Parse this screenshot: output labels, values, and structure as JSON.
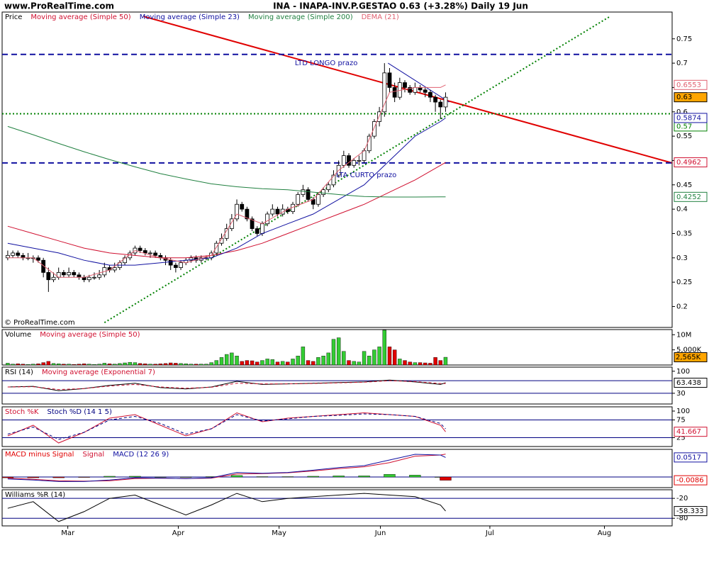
{
  "chart_data": [
    {
      "type": "candlestick",
      "site": "www.ProRealTime.com",
      "title": "INA - INAPA-INV.P.GESTAO    0.63 (+3.28%)    Daily  19 Jun",
      "copyright": "© ProRealTime.com",
      "legend_label": "Price",
      "up_color": "#ffffff",
      "down_color": "#000000",
      "close_badge_color": "#ffa500",
      "xlim": [
        -1.1,
        130.5
      ],
      "xticks": [
        {
          "value": 11.8,
          "label": "Mar"
        },
        {
          "value": 33.5,
          "label": "Apr"
        },
        {
          "value": 53.3,
          "label": "May"
        },
        {
          "value": 73.2,
          "label": "Jun"
        },
        {
          "value": 94.7,
          "label": "Jul"
        },
        {
          "value": 117.2,
          "label": "Aug"
        }
      ],
      "ylim": [
        0.157,
        0.805
      ],
      "yticks": [
        0.75,
        0.7,
        0.65,
        0.6,
        0.55,
        0.5,
        0.45,
        0.4,
        0.35,
        0.3,
        0.25,
        0.2
      ],
      "candles": [
        [
          0.3,
          0.315,
          0.295,
          0.305
        ],
        [
          0.305,
          0.315,
          0.3,
          0.31
        ],
        [
          0.31,
          0.315,
          0.3,
          0.305
        ],
        [
          0.305,
          0.31,
          0.295,
          0.3
        ],
        [
          0.3,
          0.31,
          0.295,
          0.3
        ],
        [
          0.3,
          0.305,
          0.29,
          0.3
        ],
        [
          0.3,
          0.305,
          0.29,
          0.295
        ],
        [
          0.295,
          0.3,
          0.26,
          0.27
        ],
        [
          0.27,
          0.28,
          0.23,
          0.255
        ],
        [
          0.255,
          0.27,
          0.25,
          0.26
        ],
        [
          0.26,
          0.28,
          0.255,
          0.27
        ],
        [
          0.27,
          0.275,
          0.26,
          0.265
        ],
        [
          0.265,
          0.28,
          0.26,
          0.27
        ],
        [
          0.27,
          0.275,
          0.26,
          0.265
        ],
        [
          0.265,
          0.27,
          0.255,
          0.26
        ],
        [
          0.26,
          0.265,
          0.25,
          0.255
        ],
        [
          0.255,
          0.265,
          0.25,
          0.26
        ],
        [
          0.26,
          0.27,
          0.255,
          0.26
        ],
        [
          0.26,
          0.275,
          0.255,
          0.265
        ],
        [
          0.265,
          0.29,
          0.26,
          0.28
        ],
        [
          0.28,
          0.285,
          0.27,
          0.275
        ],
        [
          0.275,
          0.29,
          0.27,
          0.28
        ],
        [
          0.28,
          0.295,
          0.275,
          0.29
        ],
        [
          0.29,
          0.305,
          0.285,
          0.3
        ],
        [
          0.3,
          0.315,
          0.295,
          0.31
        ],
        [
          0.31,
          0.325,
          0.305,
          0.32
        ],
        [
          0.32,
          0.325,
          0.31,
          0.315
        ],
        [
          0.315,
          0.32,
          0.305,
          0.31
        ],
        [
          0.31,
          0.315,
          0.3,
          0.31
        ],
        [
          0.31,
          0.315,
          0.3,
          0.305
        ],
        [
          0.305,
          0.31,
          0.295,
          0.3
        ],
        [
          0.3,
          0.305,
          0.285,
          0.295
        ],
        [
          0.295,
          0.3,
          0.275,
          0.285
        ],
        [
          0.285,
          0.29,
          0.27,
          0.28
        ],
        [
          0.28,
          0.295,
          0.275,
          0.29
        ],
        [
          0.29,
          0.3,
          0.285,
          0.295
        ],
        [
          0.295,
          0.305,
          0.29,
          0.3
        ],
        [
          0.3,
          0.305,
          0.29,
          0.295
        ],
        [
          0.295,
          0.305,
          0.29,
          0.3
        ],
        [
          0.3,
          0.305,
          0.295,
          0.3
        ],
        [
          0.3,
          0.315,
          0.295,
          0.31
        ],
        [
          0.31,
          0.335,
          0.305,
          0.33
        ],
        [
          0.33,
          0.35,
          0.325,
          0.34
        ],
        [
          0.34,
          0.37,
          0.335,
          0.36
        ],
        [
          0.36,
          0.39,
          0.355,
          0.38
        ],
        [
          0.38,
          0.42,
          0.375,
          0.41
        ],
        [
          0.41,
          0.415,
          0.395,
          0.4
        ],
        [
          0.4,
          0.405,
          0.375,
          0.38
        ],
        [
          0.38,
          0.385,
          0.355,
          0.36
        ],
        [
          0.36,
          0.365,
          0.345,
          0.35
        ],
        [
          0.35,
          0.375,
          0.345,
          0.37
        ],
        [
          0.37,
          0.395,
          0.365,
          0.39
        ],
        [
          0.39,
          0.41,
          0.385,
          0.4
        ],
        [
          0.4,
          0.405,
          0.385,
          0.39
        ],
        [
          0.39,
          0.41,
          0.385,
          0.4
        ],
        [
          0.4,
          0.405,
          0.39,
          0.395
        ],
        [
          0.395,
          0.415,
          0.39,
          0.41
        ],
        [
          0.41,
          0.435,
          0.405,
          0.43
        ],
        [
          0.43,
          0.45,
          0.425,
          0.44
        ],
        [
          0.44,
          0.445,
          0.415,
          0.42
        ],
        [
          0.42,
          0.425,
          0.4,
          0.41
        ],
        [
          0.41,
          0.435,
          0.405,
          0.43
        ],
        [
          0.43,
          0.445,
          0.425,
          0.44
        ],
        [
          0.44,
          0.455,
          0.435,
          0.45
        ],
        [
          0.45,
          0.48,
          0.445,
          0.47
        ],
        [
          0.47,
          0.5,
          0.465,
          0.49
        ],
        [
          0.49,
          0.52,
          0.485,
          0.51
        ],
        [
          0.51,
          0.515,
          0.485,
          0.49
        ],
        [
          0.49,
          0.505,
          0.485,
          0.5
        ],
        [
          0.5,
          0.51,
          0.49,
          0.5
        ],
        [
          0.5,
          0.525,
          0.495,
          0.52
        ],
        [
          0.52,
          0.555,
          0.515,
          0.55
        ],
        [
          0.55,
          0.585,
          0.545,
          0.58
        ],
        [
          0.58,
          0.61,
          0.57,
          0.6
        ],
        [
          0.6,
          0.7,
          0.59,
          0.68
        ],
        [
          0.68,
          0.69,
          0.64,
          0.65
        ],
        [
          0.65,
          0.66,
          0.62,
          0.63
        ],
        [
          0.63,
          0.67,
          0.625,
          0.66
        ],
        [
          0.66,
          0.665,
          0.64,
          0.65
        ],
        [
          0.65,
          0.655,
          0.635,
          0.64
        ],
        [
          0.64,
          0.66,
          0.635,
          0.65
        ],
        [
          0.65,
          0.655,
          0.64,
          0.645
        ],
        [
          0.645,
          0.65,
          0.63,
          0.64
        ],
        [
          0.64,
          0.645,
          0.62,
          0.63
        ],
        [
          0.63,
          0.635,
          0.6,
          0.62
        ],
        [
          0.62,
          0.625,
          0.585,
          0.61
        ],
        [
          0.61,
          0.64,
          0.6,
          0.63
        ]
      ],
      "x": [
        0,
        5,
        10,
        15,
        20,
        25,
        30,
        35,
        40,
        45,
        50,
        55,
        60,
        65,
        70,
        75,
        80,
        85,
        86
      ],
      "series": [
        {
          "name": "Moving average (Simple 50)",
          "color": "#d01030",
          "badge": true,
          "values": [
            0.365,
            0.35,
            0.335,
            0.32,
            0.31,
            0.305,
            0.3,
            0.3,
            0.305,
            0.315,
            0.33,
            0.35,
            0.37,
            0.39,
            0.41,
            0.435,
            0.46,
            0.49,
            0.4962
          ]
        },
        {
          "name": "Moving average (Simple 23)",
          "color": "#1010a0",
          "badge": true,
          "values": [
            0.33,
            0.32,
            0.31,
            0.295,
            0.285,
            0.285,
            0.29,
            0.295,
            0.3,
            0.32,
            0.35,
            0.37,
            0.39,
            0.42,
            0.45,
            0.5,
            0.55,
            0.58,
            0.5874
          ]
        },
        {
          "name": "Moving average (Simple 200)",
          "color": "#208040",
          "badge": true,
          "values": [
            0.57,
            0.553,
            0.535,
            0.518,
            0.502,
            0.487,
            0.473,
            0.462,
            0.452,
            0.446,
            0.442,
            0.44,
            0.435,
            0.43,
            0.426,
            0.425,
            0.425,
            0.4252,
            0.4252
          ]
        },
        {
          "name": "DEMA (21)",
          "color": "#e06070",
          "badge": true,
          "values": [
            0.3,
            0.3,
            0.26,
            0.26,
            0.275,
            0.315,
            0.3,
            0.29,
            0.305,
            0.39,
            0.37,
            0.4,
            0.42,
            0.48,
            0.52,
            0.64,
            0.65,
            0.65,
            0.6553
          ]
        }
      ],
      "levels": [
        {
          "value": 0.57,
          "color": "#008000"
        }
      ],
      "lines": [
        {
          "x": [
            26.7,
            130.5
          ],
          "y": [
            0.796,
            0.495
          ],
          "color": "#e00000",
          "style": "solid"
        },
        {
          "x": [
            19,
            118.3
          ],
          "y": [
            0.167,
            0.796
          ],
          "color": "#008000",
          "style": "dotted"
        },
        {
          "x": [
            -1.1,
            130.5
          ],
          "y": [
            0.596,
            0.596
          ],
          "color": "#008000",
          "style": "dotted"
        },
        {
          "x": [
            -1.1,
            130.5
          ],
          "y": [
            0.718,
            0.718
          ],
          "color": "#1010a0",
          "style": "dashed"
        },
        {
          "x": [
            -1.1,
            130.5
          ],
          "y": [
            0.495,
            0.495
          ],
          "color": "#1010a0",
          "style": "dashed"
        },
        {
          "x": [
            74.7,
            86.7
          ],
          "y": [
            0.7,
            0.62
          ],
          "color": "#1010a0",
          "style": "solid"
        }
      ],
      "annotations": [
        {
          "text": "LTD LONGO prazo",
          "x": 56.4,
          "y": 0.7,
          "color": "#1010a0"
        },
        {
          "text": "LTA CURTO prazo",
          "x": 64.5,
          "y": 0.47,
          "color": "#1010a0"
        }
      ]
    },
    {
      "type": "volume",
      "title": "Volume",
      "ma_name": "Moving average (Simple 50)",
      "ma_color": "#d01030",
      "up_color": "#33cc33",
      "down_color": "#e00000",
      "ylim": [
        0,
        11700
      ],
      "yticks": [
        {
          "value": 10000,
          "label": "10M"
        },
        {
          "value": 5000,
          "label": "5,000K"
        }
      ],
      "values": [
        600,
        300,
        400,
        300,
        200,
        300,
        400,
        800,
        1200,
        500,
        400,
        300,
        300,
        200,
        300,
        400,
        300,
        200,
        300,
        600,
        400,
        300,
        500,
        700,
        900,
        800,
        500,
        400,
        300,
        300,
        400,
        500,
        700,
        600,
        500,
        400,
        300,
        300,
        300,
        300,
        800,
        1500,
        2500,
        3500,
        4000,
        3000,
        1200,
        1500,
        1400,
        1000,
        1500,
        2000,
        1800,
        1000,
        1200,
        1000,
        2000,
        3000,
        6000,
        1500,
        1200,
        2500,
        3000,
        4000,
        8500,
        9000,
        4500,
        1500,
        1200,
        1000,
        4500,
        3000,
        5000,
        6000,
        11500,
        6000,
        5000,
        2000,
        1500,
        1000,
        800,
        800,
        700,
        600,
        2500,
        1500,
        2565
      ],
      "badge_label": "2,565K"
    },
    {
      "type": "line",
      "ylim": [
        -4,
        113
      ],
      "yticks": [
        100,
        30
      ],
      "hlines": [
        70,
        30
      ],
      "x": [
        0,
        5,
        10,
        15,
        20,
        25,
        30,
        35,
        40,
        45,
        50,
        55,
        60,
        65,
        70,
        75,
        80,
        85,
        86
      ],
      "series": [
        {
          "name": "RSI (14)",
          "color": "#000000",
          "badge": true,
          "values": [
            50,
            52,
            38,
            45,
            55,
            62,
            48,
            44,
            50,
            68,
            58,
            60,
            62,
            64,
            66,
            72,
            66,
            58,
            63.438
          ]
        },
        {
          "name": "Moving average (Exponential 7)",
          "color": "#d01030",
          "dash": true,
          "values": [
            50,
            51,
            42,
            45,
            53,
            58,
            50,
            46,
            49,
            62,
            60,
            60,
            61,
            63,
            65,
            70,
            67,
            61,
            61
          ]
        }
      ]
    },
    {
      "type": "line",
      "ylim": [
        0,
        112
      ],
      "yticks": [
        100,
        75,
        25
      ],
      "hlines": [
        75,
        25
      ],
      "x": [
        0,
        5,
        10,
        15,
        20,
        25,
        30,
        35,
        40,
        45,
        50,
        55,
        60,
        65,
        70,
        75,
        80,
        85,
        86
      ],
      "series": [
        {
          "name": "Stoch %K",
          "color": "#d01030",
          "badge": true,
          "values": [
            30,
            60,
            10,
            40,
            80,
            90,
            60,
            30,
            50,
            95,
            70,
            80,
            85,
            90,
            95,
            90,
            85,
            60,
            41.667
          ]
        },
        {
          "name": "Stoch %D (14 1 5)",
          "color": "#000080",
          "dash": true,
          "values": [
            35,
            55,
            20,
            40,
            75,
            85,
            65,
            35,
            50,
            90,
            72,
            78,
            85,
            88,
            92,
            90,
            85,
            65,
            50
          ]
        }
      ]
    },
    {
      "type": "line",
      "ylim": [
        -0.028,
        0.073
      ],
      "hlines": [
        0
      ],
      "x": [
        0,
        5,
        10,
        15,
        20,
        25,
        30,
        35,
        40,
        45,
        50,
        55,
        60,
        65,
        70,
        75,
        80,
        85,
        86
      ],
      "series": [
        {
          "name": "MACD minus Signal",
          "color": "#e00000",
          "style": "bar",
          "badge": true,
          "values": [
            -0.002,
            -0.002,
            -0.002,
            -0.001,
            0.002,
            0.002,
            0,
            0,
            0.001,
            0.004,
            0.001,
            0.001,
            0.002,
            0.003,
            0.003,
            0.007,
            0.005,
            0,
            -0.0086
          ]
        },
        {
          "name": "Signal",
          "color": "#d01030",
          "values": [
            -0.003,
            -0.006,
            -0.01,
            -0.011,
            -0.01,
            -0.004,
            -0.003,
            -0.004,
            -0.003,
            0.008,
            0.009,
            0.011,
            0.016,
            0.022,
            0.027,
            0.038,
            0.055,
            0.058,
            0.0603
          ]
        },
        {
          "name": "MACD (12 26 9)",
          "color": "#1010a0",
          "badge": true,
          "values": [
            -0.005,
            -0.008,
            -0.012,
            -0.012,
            -0.008,
            -0.002,
            -0.003,
            -0.004,
            -0.002,
            0.012,
            0.01,
            0.012,
            0.018,
            0.025,
            0.03,
            0.045,
            0.06,
            0.058,
            0.0517
          ]
        }
      ]
    },
    {
      "type": "line",
      "ylim": [
        -103,
        6
      ],
      "yticks": [
        -20,
        -80
      ],
      "hlines": [
        -20,
        -80
      ],
      "x": [
        0,
        5,
        10,
        15,
        20,
        25,
        30,
        35,
        40,
        45,
        50,
        55,
        60,
        65,
        70,
        75,
        80,
        85,
        86
      ],
      "series": [
        {
          "name": "Williams %R (14)",
          "color": "#000000",
          "badge": true,
          "values": [
            -50,
            -30,
            -90,
            -60,
            -20,
            -10,
            -40,
            -70,
            -40,
            -5,
            -30,
            -20,
            -15,
            -10,
            -5,
            -10,
            -15,
            -40,
            -58.333
          ]
        }
      ]
    }
  ]
}
